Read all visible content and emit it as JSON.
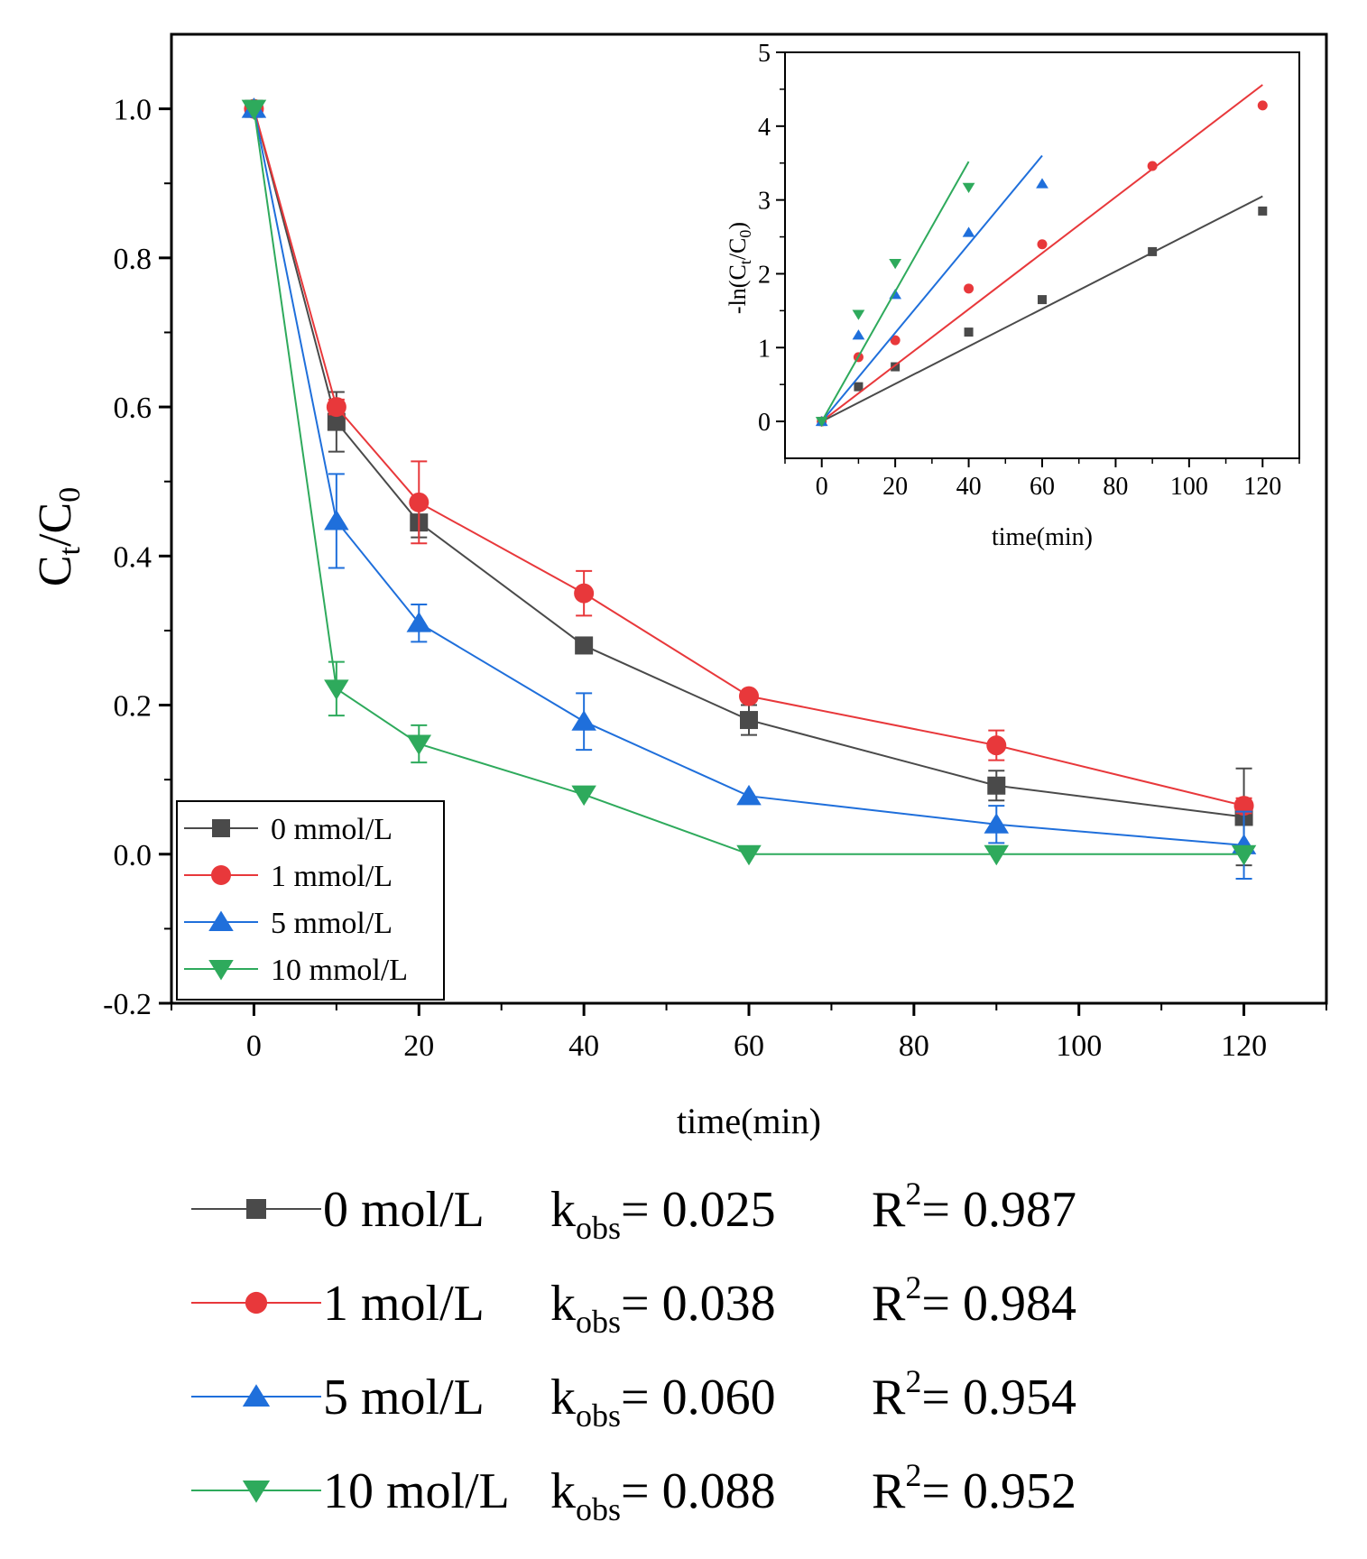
{
  "chart_data": [
    {
      "type": "line",
      "role": "main",
      "xlabel": "time(min)",
      "ylabel": "C",
      "ylabel_sub": "t",
      "ylabel_mid": "/C",
      "ylabel_sub2": "0",
      "xlim": [
        -10,
        130
      ],
      "ylim": [
        -0.2,
        1.1
      ],
      "xticks": [
        0,
        20,
        40,
        60,
        80,
        100,
        120
      ],
      "xtick_labels": [
        "0",
        "20",
        "40",
        "60",
        "80",
        "100",
        "120"
      ],
      "yticks": [
        -0.2,
        0.0,
        0.2,
        0.4,
        0.6,
        0.8,
        1.0
      ],
      "ytick_labels": [
        "-0.2",
        "0.0",
        "0.2",
        "0.4",
        "0.6",
        "0.8",
        "1.0"
      ],
      "legend_position": "bottom-left",
      "series": [
        {
          "name": "0 mmol/L",
          "color": "#4a4a4a",
          "marker": "square",
          "x": [
            0,
            10,
            20,
            40,
            60,
            90,
            120
          ],
          "y": [
            1.0,
            0.58,
            0.445,
            0.28,
            0.18,
            0.092,
            0.05
          ],
          "err": [
            0.005,
            0.04,
            0.02,
            0.01,
            0.02,
            0.02,
            0.065
          ]
        },
        {
          "name": "1 mmol/L",
          "color": "#e8383b",
          "marker": "circle",
          "x": [
            0,
            10,
            20,
            40,
            60,
            90,
            120
          ],
          "y": [
            1.0,
            0.6,
            0.472,
            0.35,
            0.212,
            0.146,
            0.065
          ],
          "err": [
            0.005,
            0.01,
            0.055,
            0.03,
            0.005,
            0.02,
            0.01
          ]
        },
        {
          "name": "5 mmol/L",
          "color": "#1f6fdb",
          "marker": "triangle-up",
          "x": [
            0,
            10,
            20,
            40,
            60,
            90,
            120
          ],
          "y": [
            1.0,
            0.447,
            0.31,
            0.178,
            0.078,
            0.04,
            0.012
          ],
          "err": [
            0.005,
            0.063,
            0.025,
            0.038,
            0.005,
            0.025,
            0.045
          ]
        },
        {
          "name": "10 mmol/L",
          "color": "#2eaa5c",
          "marker": "triangle-down",
          "x": [
            0,
            10,
            20,
            40,
            60,
            90,
            120
          ],
          "y": [
            1.0,
            0.222,
            0.148,
            0.08,
            0.0,
            0.0,
            0.0
          ],
          "err": [
            0.005,
            0.036,
            0.025,
            0.005,
            0.0,
            0.0,
            0.0
          ]
        }
      ]
    },
    {
      "type": "scatter",
      "role": "inset",
      "xlabel": "time(min)",
      "ylabel": "-ln(C",
      "ylabel_sub": "t",
      "ylabel_mid": "/C",
      "ylabel_sub2": "0",
      "ylabel_end": ")",
      "xlim": [
        -10,
        130
      ],
      "ylim": [
        -0.5,
        5
      ],
      "xticks": [
        0,
        20,
        40,
        60,
        80,
        100,
        120
      ],
      "xtick_labels": [
        "0",
        "20",
        "40",
        "60",
        "80",
        "100",
        "120"
      ],
      "yticks": [
        0,
        1,
        2,
        3,
        4,
        5
      ],
      "ytick_labels": [
        "0",
        "1",
        "2",
        "3",
        "4",
        "5"
      ],
      "series": [
        {
          "name": "0 mmol/L",
          "color": "#4a4a4a",
          "marker": "square",
          "x": [
            0,
            10,
            20,
            40,
            60,
            90,
            120
          ],
          "y": [
            0,
            0.47,
            0.74,
            1.21,
            1.65,
            2.3,
            2.85
          ],
          "fit_x": [
            0,
            120
          ],
          "fit_y": [
            0,
            3.05
          ]
        },
        {
          "name": "1 mmol/L",
          "color": "#e8383b",
          "marker": "circle",
          "x": [
            0,
            10,
            20,
            40,
            60,
            90,
            120
          ],
          "y": [
            0,
            0.87,
            1.1,
            1.8,
            2.4,
            3.46,
            4.28
          ],
          "fit_x": [
            0,
            120
          ],
          "fit_y": [
            0,
            4.56
          ]
        },
        {
          "name": "5 mmol/L",
          "color": "#1f6fdb",
          "marker": "triangle-up",
          "x": [
            0,
            10,
            20,
            40,
            60
          ],
          "y": [
            0,
            1.17,
            1.72,
            2.56,
            3.22
          ],
          "fit_x": [
            0,
            60
          ],
          "fit_y": [
            0,
            3.6
          ]
        },
        {
          "name": "10 mmol/L",
          "color": "#2eaa5c",
          "marker": "triangle-down",
          "x": [
            0,
            10,
            20,
            40
          ],
          "y": [
            0,
            1.45,
            2.14,
            3.17
          ],
          "fit_x": [
            0,
            40
          ],
          "fit_y": [
            0,
            3.52
          ]
        }
      ]
    }
  ],
  "kinetics_legend": [
    {
      "label": "0 mol/L",
      "k_label": "k",
      "k_sub": "obs",
      "k_value": "= 0.025",
      "r_label": "R",
      "r_sup": "2",
      "r_value": "= 0.987",
      "color": "#4a4a4a",
      "marker": "square"
    },
    {
      "label": "1 mol/L",
      "k_label": "k",
      "k_sub": "obs",
      "k_value": "= 0.038",
      "r_label": "R",
      "r_sup": "2",
      "r_value": "= 0.984",
      "color": "#e8383b",
      "marker": "circle"
    },
    {
      "label": "5 mol/L",
      "k_label": "k",
      "k_sub": "obs",
      "k_value": "= 0.060",
      "r_label": "R",
      "r_sup": "2",
      "r_value": "= 0.954",
      "color": "#1f6fdb",
      "marker": "triangle-up"
    },
    {
      "label": "10 mol/L",
      "k_label": "k",
      "k_sub": "obs",
      "k_value": "= 0.088",
      "r_label": "R",
      "r_sup": "2",
      "r_value": "= 0.952",
      "color": "#2eaa5c",
      "marker": "triangle-down"
    }
  ]
}
